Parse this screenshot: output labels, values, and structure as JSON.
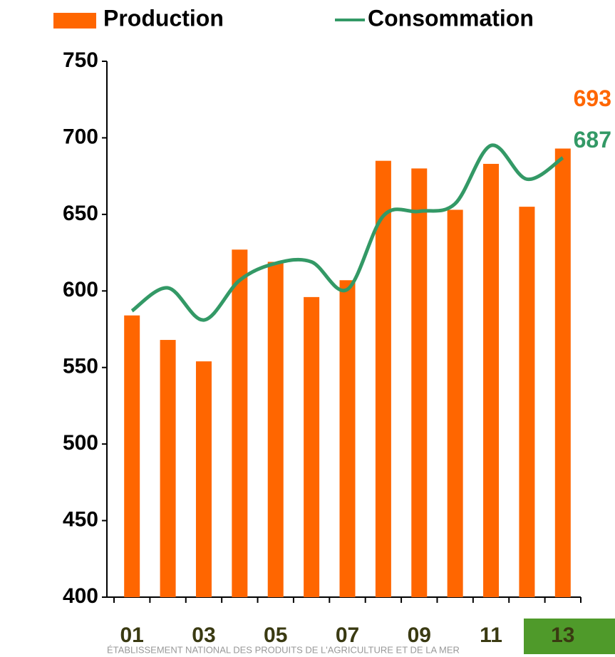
{
  "chart_data": {
    "type": "bar-line",
    "categories": [
      "01",
      null,
      "03",
      null,
      "05",
      null,
      "07",
      null,
      "09",
      null,
      "11",
      null,
      "13"
    ],
    "series": [
      {
        "name": "Production",
        "color": "#ff6600",
        "values": [
          584,
          568,
          554,
          627,
          619,
          596,
          607,
          685,
          680,
          653,
          683,
          655,
          693
        ]
      },
      {
        "name": "Consommation",
        "color": "#339966",
        "values": [
          587,
          602,
          581,
          607,
          618,
          619,
          601,
          649,
          652,
          657,
          695,
          673,
          687
        ]
      }
    ],
    "ylim": [
      400,
      750
    ],
    "yticks": [
      400,
      450,
      500,
      550,
      600,
      650,
      700,
      750
    ],
    "legend": "top",
    "footer": "ÉTABLISSEMENT NATIONAL DES PRODUITS DE L'AGRICULTURE ET DE LA MER"
  }
}
